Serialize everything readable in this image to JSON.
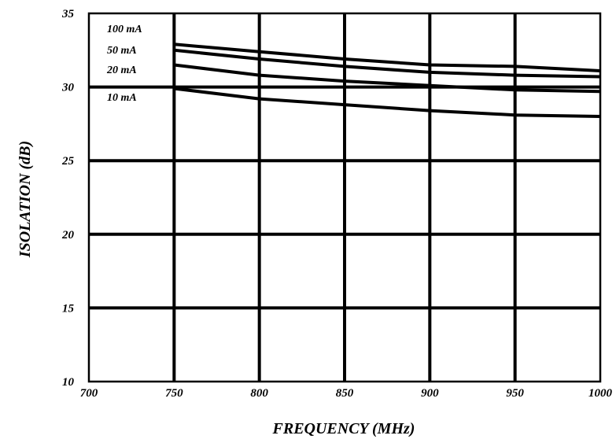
{
  "chart_data": {
    "type": "line",
    "title": "",
    "xlabel": "FREQUENCY (MHz)",
    "ylabel": "ISOLATION (dB)",
    "xlim": [
      700,
      1000
    ],
    "ylim": [
      10,
      35
    ],
    "x_ticks": [
      700,
      750,
      800,
      850,
      900,
      950,
      1000
    ],
    "y_ticks": [
      10,
      15,
      20,
      25,
      30,
      35
    ],
    "grid": true,
    "line_color": "#000000",
    "series": [
      {
        "name": "100 mA",
        "x": [
          750,
          800,
          850,
          900,
          950,
          1000
        ],
        "y": [
          32.9,
          32.4,
          31.9,
          31.5,
          31.4,
          31.1
        ]
      },
      {
        "name": "50 mA",
        "x": [
          750,
          800,
          850,
          900,
          950,
          1000
        ],
        "y": [
          32.5,
          31.9,
          31.4,
          31.0,
          30.8,
          30.7
        ]
      },
      {
        "name": "20 mA",
        "x": [
          750,
          800,
          850,
          900,
          950,
          1000
        ],
        "y": [
          31.5,
          30.8,
          30.4,
          30.1,
          29.8,
          29.7
        ]
      },
      {
        "name": "10 mA",
        "x": [
          750,
          800,
          850,
          900,
          950,
          1000
        ],
        "y": [
          29.9,
          29.2,
          28.8,
          28.4,
          28.1,
          28.0
        ]
      }
    ]
  }
}
